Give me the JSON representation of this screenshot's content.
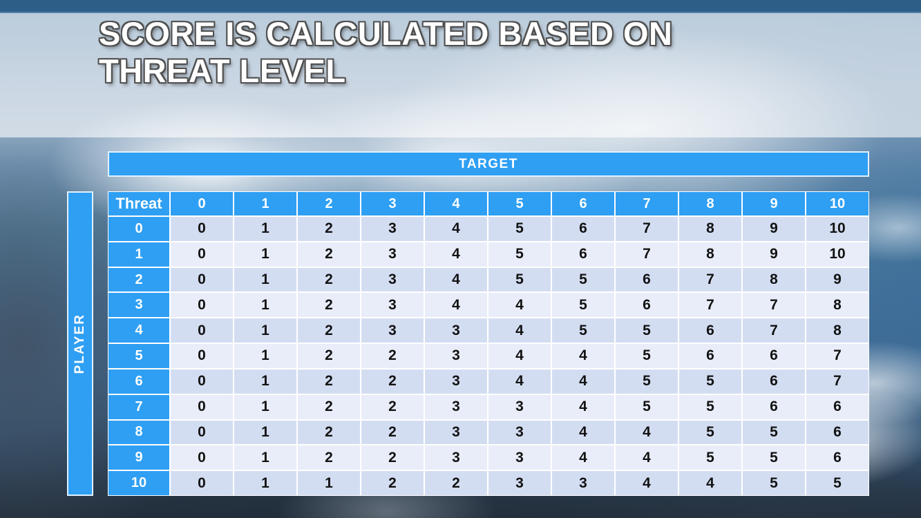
{
  "slide": {
    "title_line1": "SCORE IS CALCULATED BASED ON",
    "title_line2": "THREAT LEVEL"
  },
  "matrix": {
    "target_label": "TARGET",
    "player_label": "PLAYER",
    "corner_label": "Threat",
    "column_headers": [
      "0",
      "1",
      "2",
      "3",
      "4",
      "5",
      "6",
      "7",
      "8",
      "9",
      "10"
    ],
    "rows": [
      {
        "threat": "0",
        "values": [
          "0",
          "1",
          "2",
          "3",
          "4",
          "5",
          "6",
          "7",
          "8",
          "9",
          "10"
        ]
      },
      {
        "threat": "1",
        "values": [
          "0",
          "1",
          "2",
          "3",
          "4",
          "5",
          "6",
          "7",
          "8",
          "9",
          "10"
        ]
      },
      {
        "threat": "2",
        "values": [
          "0",
          "1",
          "2",
          "3",
          "4",
          "5",
          "5",
          "6",
          "7",
          "8",
          "9"
        ]
      },
      {
        "threat": "3",
        "values": [
          "0",
          "1",
          "2",
          "3",
          "4",
          "4",
          "5",
          "6",
          "7",
          "7",
          "8"
        ]
      },
      {
        "threat": "4",
        "values": [
          "0",
          "1",
          "2",
          "3",
          "3",
          "4",
          "5",
          "5",
          "6",
          "7",
          "8"
        ]
      },
      {
        "threat": "5",
        "values": [
          "0",
          "1",
          "2",
          "2",
          "3",
          "4",
          "4",
          "5",
          "6",
          "6",
          "7"
        ]
      },
      {
        "threat": "6",
        "values": [
          "0",
          "1",
          "2",
          "2",
          "3",
          "4",
          "4",
          "5",
          "5",
          "6",
          "7"
        ]
      },
      {
        "threat": "7",
        "values": [
          "0",
          "1",
          "2",
          "2",
          "3",
          "3",
          "4",
          "5",
          "5",
          "6",
          "6"
        ]
      },
      {
        "threat": "8",
        "values": [
          "0",
          "1",
          "2",
          "2",
          "3",
          "3",
          "4",
          "4",
          "5",
          "5",
          "6"
        ]
      },
      {
        "threat": "9",
        "values": [
          "0",
          "1",
          "2",
          "2",
          "3",
          "3",
          "4",
          "4",
          "5",
          "5",
          "6"
        ]
      },
      {
        "threat": "10",
        "values": [
          "0",
          "1",
          "1",
          "2",
          "2",
          "3",
          "3",
          "4",
          "4",
          "5",
          "5"
        ]
      }
    ]
  },
  "colors": {
    "accent_blue": "#2F9FF3",
    "band_dark_row": "#D3DDF2",
    "band_light_row": "#E9EDF9",
    "top_bar": "#2D5E88",
    "cell_text": "#121212"
  }
}
